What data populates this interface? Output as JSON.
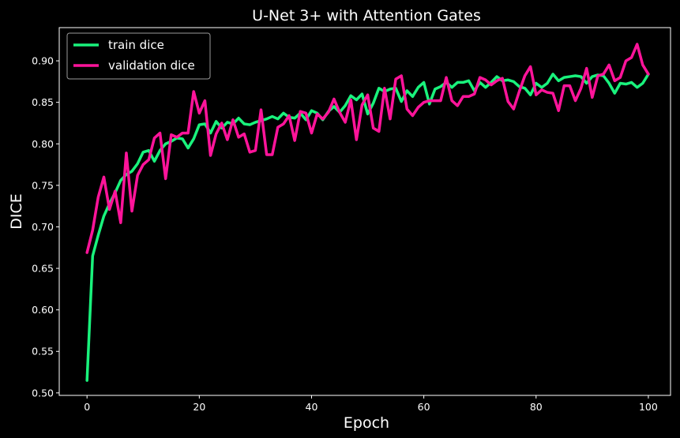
{
  "chart_data": {
    "type": "line",
    "title": "U-Net 3+ with Attention Gates",
    "xlabel": "Epoch",
    "ylabel": "DICE",
    "xlim": [
      -4.95,
      103.95
    ],
    "ylim": [
      0.497,
      0.94
    ],
    "xticks": [
      0,
      20,
      40,
      60,
      80,
      100
    ],
    "yticks": [
      0.5,
      0.55,
      0.6,
      0.65,
      0.7,
      0.75,
      0.8,
      0.85,
      0.9
    ],
    "grid": false,
    "legend_position": "top-left",
    "background": "#000000",
    "series": [
      {
        "name": "train dice",
        "color": "#19f27c",
        "values": [
          0.515,
          0.665,
          0.69,
          0.713,
          0.728,
          0.741,
          0.756,
          0.763,
          0.767,
          0.776,
          0.79,
          0.792,
          0.779,
          0.792,
          0.8,
          0.803,
          0.807,
          0.806,
          0.795,
          0.806,
          0.823,
          0.824,
          0.813,
          0.827,
          0.819,
          0.826,
          0.824,
          0.831,
          0.824,
          0.823,
          0.826,
          0.828,
          0.83,
          0.833,
          0.83,
          0.837,
          0.832,
          0.831,
          0.837,
          0.829,
          0.84,
          0.837,
          0.829,
          0.839,
          0.845,
          0.838,
          0.846,
          0.858,
          0.853,
          0.86,
          0.836,
          0.849,
          0.867,
          0.863,
          0.866,
          0.867,
          0.851,
          0.864,
          0.857,
          0.868,
          0.874,
          0.848,
          0.866,
          0.869,
          0.874,
          0.868,
          0.874,
          0.874,
          0.876,
          0.864,
          0.874,
          0.868,
          0.874,
          0.881,
          0.876,
          0.877,
          0.875,
          0.869,
          0.867,
          0.859,
          0.873,
          0.868,
          0.873,
          0.884,
          0.876,
          0.88,
          0.881,
          0.882,
          0.881,
          0.873,
          0.881,
          0.883,
          0.882,
          0.873,
          0.861,
          0.873,
          0.872,
          0.874,
          0.868,
          0.873,
          0.884
        ]
      },
      {
        "name": "validation dice",
        "color": "#ff149a",
        "values": [
          0.669,
          0.696,
          0.736,
          0.76,
          0.721,
          0.743,
          0.705,
          0.789,
          0.719,
          0.762,
          0.775,
          0.781,
          0.807,
          0.813,
          0.758,
          0.811,
          0.808,
          0.813,
          0.813,
          0.863,
          0.837,
          0.852,
          0.786,
          0.812,
          0.825,
          0.805,
          0.829,
          0.808,
          0.812,
          0.79,
          0.792,
          0.841,
          0.787,
          0.787,
          0.82,
          0.824,
          0.834,
          0.804,
          0.839,
          0.837,
          0.813,
          0.836,
          0.83,
          0.838,
          0.854,
          0.838,
          0.826,
          0.853,
          0.805,
          0.847,
          0.859,
          0.819,
          0.815,
          0.867,
          0.83,
          0.878,
          0.882,
          0.842,
          0.834,
          0.844,
          0.85,
          0.852,
          0.852,
          0.852,
          0.88,
          0.852,
          0.846,
          0.857,
          0.857,
          0.86,
          0.88,
          0.877,
          0.871,
          0.876,
          0.879,
          0.851,
          0.842,
          0.863,
          0.882,
          0.893,
          0.859,
          0.865,
          0.862,
          0.861,
          0.84,
          0.87,
          0.87,
          0.852,
          0.867,
          0.891,
          0.856,
          0.882,
          0.884,
          0.895,
          0.876,
          0.88,
          0.9,
          0.904,
          0.92,
          0.895,
          0.884
        ]
      }
    ]
  }
}
